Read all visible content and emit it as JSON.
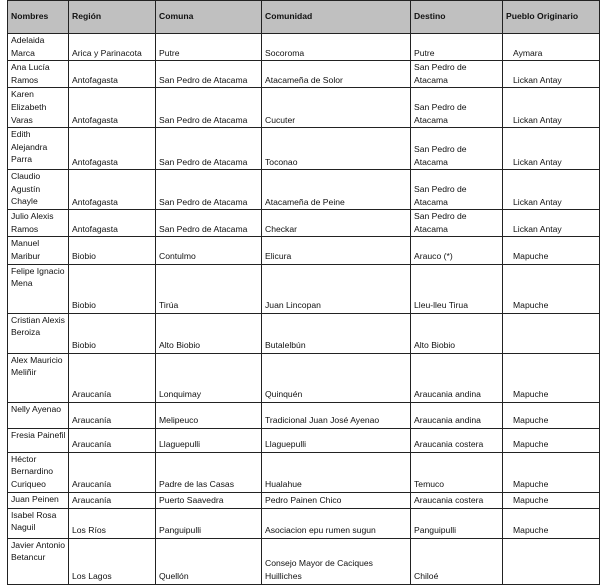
{
  "table": {
    "headers": [
      "Nombres",
      "Región",
      "Comuna",
      "Comunidad",
      "Destino",
      "Pueblo Originario"
    ],
    "rows": [
      [
        "Adelaida Marca",
        "Arica y Parinacota",
        "Putre",
        "Socoroma",
        "Putre",
        "Aymara"
      ],
      [
        "Ana Lucía Ramos",
        "Antofagasta",
        "San Pedro de Atacama",
        "Atacameña de Solor",
        "San Pedro de Atacama",
        "Lickan Antay"
      ],
      [
        "Karen Elizabeth Varas",
        "Antofagasta",
        "San Pedro de Atacama",
        "Cucuter",
        "San Pedro de Atacama",
        "Lickan Antay"
      ],
      [
        "Edith Alejandra Parra",
        "Antofagasta",
        "San Pedro de Atacama",
        "Toconao",
        "San Pedro de Atacama",
        "Lickan Antay"
      ],
      [
        "Claudio Agustín Chayle",
        "Antofagasta",
        "San Pedro de Atacama",
        "Atacameña de Peine",
        "San Pedro de Atacama",
        "Lickan Antay"
      ],
      [
        "Julio Alexis Ramos",
        "Antofagasta",
        "San Pedro de Atacama",
        "Checkar",
        "San Pedro de Atacama",
        "Lickan Antay"
      ],
      [
        "Manuel Maribur",
        "Biobio",
        "Contulmo",
        "Elicura",
        "Arauco (*)",
        "Mapuche"
      ],
      [
        "Felipe Ignacio Mena",
        "Biobio",
        "Tirúa",
        "Juan Lincopan",
        "Lleu-lleu Tirua",
        "Mapuche"
      ],
      [
        "Cristian Alexis Beroiza",
        "Biobio",
        "Alto Biobio",
        "Butalelbún",
        "Alto  Biobio",
        ""
      ],
      [
        "Alex Mauricio Meliñir",
        "Araucanía",
        "Lonquimay",
        "Quinquén",
        "Araucania andina",
        "Mapuche"
      ],
      [
        "Nelly Ayenao",
        "Araucanía",
        "Melipeuco",
        "Tradicional Juan José Ayenao",
        "Araucania andina",
        "Mapuche"
      ],
      [
        "Fresia Painefil",
        "Araucanía",
        "Llaguepulli",
        "Llaguepulli",
        "Araucania costera",
        "Mapuche"
      ],
      [
        "Héctor Bernardino Curiqueo",
        "Araucanía",
        "Padre de las Casas",
        "Hualahue",
        "Temuco",
        "Mapuche"
      ],
      [
        "Juan Peinen",
        "Araucanía",
        "Puerto Saavedra",
        "Pedro Painen Chico",
        "Araucania costera",
        "Mapuche"
      ],
      [
        "Isabel Rosa Naguil",
        "Los Ríos",
        "Panguipulli",
        "Asociacion epu rumen sugun",
        "Panguipulli",
        "Mapuche"
      ],
      [
        "Javier Antonio Betancur",
        "Los Lagos",
        "Quellón",
        "Consejo Mayor de Caciques Huilliches",
        "Chiloé",
        ""
      ]
    ]
  },
  "colors": {
    "header_bg": "#c0c0c0",
    "border": "#222222"
  }
}
